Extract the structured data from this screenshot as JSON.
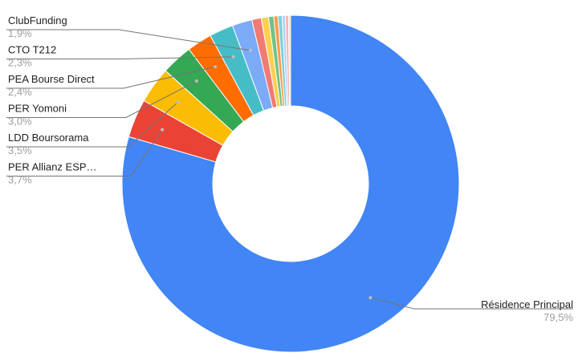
{
  "chart_data": {
    "type": "pie",
    "variant": "donut",
    "start_angle_deg": 0,
    "direction": "clockwise",
    "series": [
      {
        "name": "Résidence Principal",
        "value": 79.5,
        "value_label": "79,5%",
        "color": "#4285f4",
        "label_side": "right"
      },
      {
        "name": "PER Allianz ESP…",
        "value": 3.7,
        "value_label": "3,7%",
        "color": "#ea4335",
        "label_side": "left"
      },
      {
        "name": "LDD Boursorama",
        "value": 3.5,
        "value_label": "3,5%",
        "color": "#fbbc04",
        "label_side": "left"
      },
      {
        "name": "PER Yomoni",
        "value": 3.0,
        "value_label": "3,0%",
        "color": "#34a853",
        "label_side": "left"
      },
      {
        "name": "PEA Bourse Direct",
        "value": 2.4,
        "value_label": "2,4%",
        "color": "#ff6d01",
        "label_side": "left"
      },
      {
        "name": "CTO T212",
        "value": 2.3,
        "value_label": "2,3%",
        "color": "#46bdc6",
        "label_side": "left"
      },
      {
        "name": "ClubFunding",
        "value": 1.9,
        "value_label": "1,9%",
        "color": "#7baaf7",
        "label_side": "left"
      },
      {
        "name": "",
        "value": 0.9,
        "value_label": "",
        "color": "#f07b72",
        "label_side": "none"
      },
      {
        "name": "",
        "value": 0.7,
        "value_label": "",
        "color": "#fcd04f",
        "label_side": "none"
      },
      {
        "name": "",
        "value": 0.5,
        "value_label": "",
        "color": "#71c287",
        "label_side": "none"
      },
      {
        "name": "",
        "value": 0.4,
        "value_label": "",
        "color": "#ff994d",
        "label_side": "none"
      },
      {
        "name": "",
        "value": 0.4,
        "value_label": "",
        "color": "#7ed1d7",
        "label_side": "none"
      },
      {
        "name": "",
        "value": 0.3,
        "value_label": "",
        "color": "#b3cefb",
        "label_side": "none"
      },
      {
        "name": "",
        "value": 0.3,
        "value_label": "",
        "color": "#f7b4ae",
        "label_side": "none"
      },
      {
        "name": "",
        "value": 0.2,
        "value_label": "",
        "color": "#fde49b",
        "label_side": "none"
      }
    ]
  }
}
